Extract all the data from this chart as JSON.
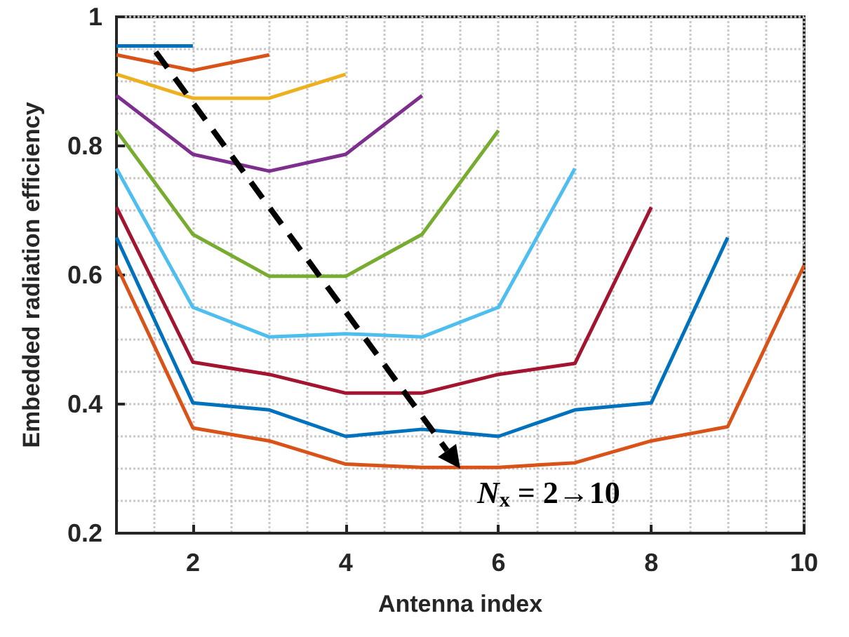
{
  "chart_data": {
    "type": "line",
    "xlabel": "Antenna index",
    "ylabel": "Embedded radiation efficiency",
    "xlim": [
      1,
      10
    ],
    "xticks": [
      2,
      4,
      6,
      8,
      10
    ],
    "ylim": [
      0.2,
      1
    ],
    "yticks": [
      0.2,
      0.4,
      0.6,
      0.8,
      1
    ],
    "grid": true,
    "marker": "none",
    "line_style": "solid",
    "annotations": [
      {
        "text": "N$_{x}$ = 2→10",
        "x": 5.5,
        "y": 0.3
      }
    ],
    "series": [
      {
        "color": "#0072bd",
        "x": [
          1,
          2
        ],
        "values": [
          0.955,
          0.955
        ]
      },
      {
        "color": "#d95319",
        "x": [
          1,
          2,
          3
        ],
        "values": [
          0.941,
          0.917,
          0.941
        ]
      },
      {
        "color": "#edb120",
        "x": [
          1,
          2,
          3,
          4
        ],
        "values": [
          0.911,
          0.874,
          0.874,
          0.911
        ]
      },
      {
        "color": "#7e2f8e",
        "x": [
          1,
          2,
          3,
          4,
          5
        ],
        "values": [
          0.878,
          0.787,
          0.761,
          0.787,
          0.878
        ]
      },
      {
        "color": "#77ac30",
        "x": [
          1,
          2,
          3,
          4,
          5,
          6
        ],
        "values": [
          0.824,
          0.663,
          0.598,
          0.598,
          0.663,
          0.824
        ]
      },
      {
        "color": "#4dbeee",
        "x": [
          1,
          2,
          3,
          4,
          5,
          6,
          7
        ],
        "values": [
          0.765,
          0.55,
          0.504,
          0.509,
          0.504,
          0.55,
          0.765
        ]
      },
      {
        "color": "#a2142f",
        "x": [
          1,
          2,
          3,
          4,
          5,
          6,
          7,
          8
        ],
        "values": [
          0.705,
          0.465,
          0.446,
          0.417,
          0.417,
          0.446,
          0.463,
          0.705
        ]
      },
      {
        "color": "#0072bd",
        "x": [
          1,
          2,
          3,
          4,
          5,
          6,
          7,
          8,
          9
        ],
        "values": [
          0.658,
          0.402,
          0.391,
          0.35,
          0.361,
          0.35,
          0.391,
          0.402,
          0.658
        ]
      },
      {
        "color": "#d95319",
        "x": [
          1,
          2,
          3,
          4,
          5,
          6,
          7,
          8,
          9,
          10
        ],
        "values": [
          0.615,
          0.363,
          0.343,
          0.307,
          0.302,
          0.302,
          0.309,
          0.343,
          0.365,
          0.615
        ]
      }
    ]
  }
}
